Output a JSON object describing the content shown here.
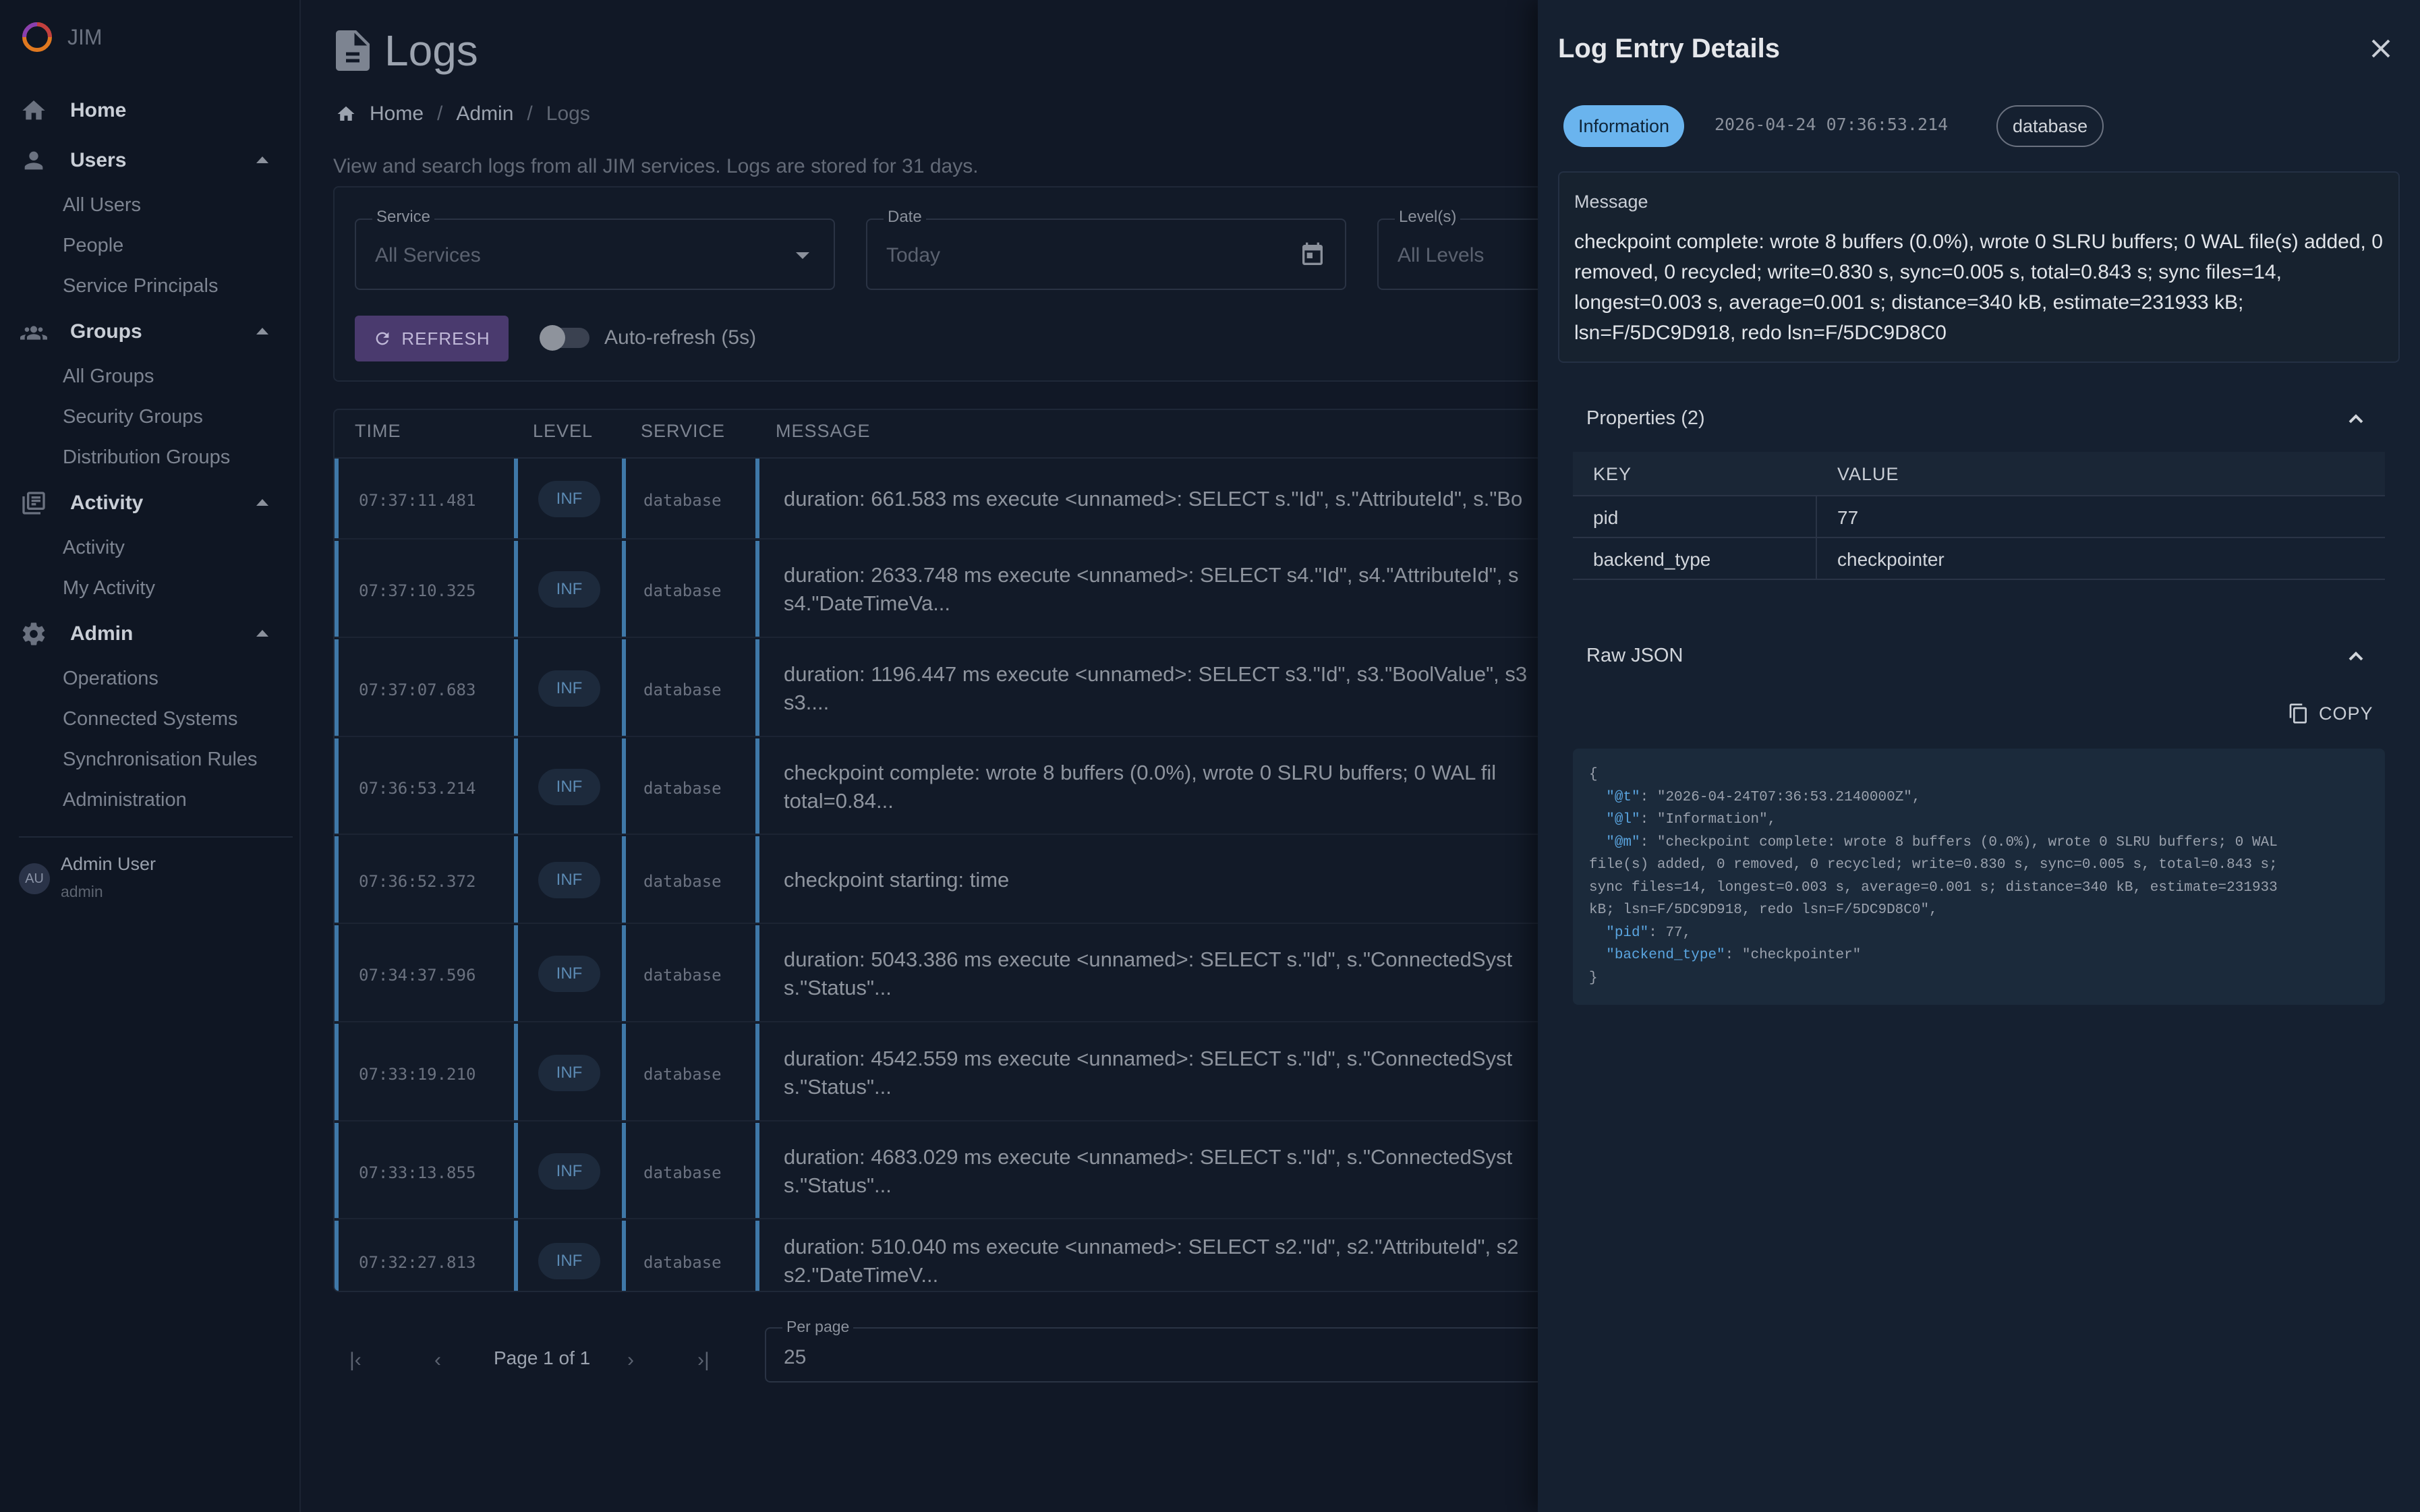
{
  "app": {
    "name": "JIM"
  },
  "sidebar": {
    "home": "Home",
    "groups": [
      {
        "label": "Users",
        "items": [
          "All Users",
          "People",
          "Service Principals"
        ]
      },
      {
        "label": "Groups",
        "items": [
          "All Groups",
          "Security Groups",
          "Distribution Groups"
        ]
      },
      {
        "label": "Activity",
        "items": [
          "Activity",
          "My Activity"
        ]
      },
      {
        "label": "Admin",
        "items": [
          "Operations",
          "Connected Systems",
          "Synchronisation Rules",
          "Administration"
        ]
      }
    ],
    "user": {
      "initials": "AU",
      "name": "Admin User",
      "role": "admin"
    }
  },
  "page": {
    "title": "Logs",
    "breadcrumb": [
      "Home",
      "Admin",
      "Logs"
    ],
    "subtitle": "View and search logs from all JIM services. Logs are stored for 31 days."
  },
  "filters": {
    "service": {
      "label": "Service",
      "value": "All Services"
    },
    "date": {
      "label": "Date",
      "value": "Today"
    },
    "levels": {
      "label": "Level(s)",
      "value": "All Levels"
    },
    "refresh_label": "REFRESH",
    "autorefresh_label": "Auto-refresh (5s)"
  },
  "table": {
    "headers": [
      "TIME",
      "LEVEL",
      "SERVICE",
      "MESSAGE"
    ],
    "rows": [
      {
        "time": "07:37:11.481",
        "level": "INF",
        "service": "database",
        "message": "duration: 661.583 ms execute <unnamed>: SELECT s.\"Id\", s.\"AttributeId\", s.\"Bo"
      },
      {
        "time": "07:37:10.325",
        "level": "INF",
        "service": "database",
        "message": "duration: 2633.748 ms execute <unnamed>: SELECT s4.\"Id\", s4.\"AttributeId\", s\ns4.\"DateTimeVa..."
      },
      {
        "time": "07:37:07.683",
        "level": "INF",
        "service": "database",
        "message": "duration: 1196.447 ms execute <unnamed>: SELECT s3.\"Id\", s3.\"BoolValue\", s3\ns3...."
      },
      {
        "time": "07:36:53.214",
        "level": "INF",
        "service": "database",
        "message": "checkpoint complete: wrote 8 buffers (0.0%), wrote 0 SLRU buffers; 0 WAL fil\ntotal=0.84..."
      },
      {
        "time": "07:36:52.372",
        "level": "INF",
        "service": "database",
        "message": "checkpoint starting: time"
      },
      {
        "time": "07:34:37.596",
        "level": "INF",
        "service": "database",
        "message": "duration: 5043.386 ms execute <unnamed>: SELECT s.\"Id\", s.\"ConnectedSyst\ns.\"Status\"..."
      },
      {
        "time": "07:33:19.210",
        "level": "INF",
        "service": "database",
        "message": "duration: 4542.559 ms execute <unnamed>: SELECT s.\"Id\", s.\"ConnectedSyst\ns.\"Status\"..."
      },
      {
        "time": "07:33:13.855",
        "level": "INF",
        "service": "database",
        "message": "duration: 4683.029 ms execute <unnamed>: SELECT s.\"Id\", s.\"ConnectedSyst\ns.\"Status\"..."
      },
      {
        "time": "07:32:27.813",
        "level": "INF",
        "service": "database",
        "message": "duration: 510.040 ms execute <unnamed>: SELECT s2.\"Id\", s2.\"AttributeId\", s2\ns2.\"DateTimeV..."
      }
    ]
  },
  "pager": {
    "page_text": "Page 1 of 1",
    "per_page_label": "Per page",
    "per_page_value": "25"
  },
  "drawer": {
    "title": "Log Entry Details",
    "level": "Information",
    "timestamp": "2026-04-24 07:36:53.214",
    "service": "database",
    "message_label": "Message",
    "message": "checkpoint complete: wrote 8 buffers (0.0%), wrote 0 SLRU buffers; 0 WAL file(s) added, 0 removed, 0 recycled; write=0.830 s, sync=0.005 s, total=0.843 s; sync files=14, longest=0.003 s, average=0.001 s; distance=340 kB, estimate=231933 kB; lsn=F/5DC9D918, redo lsn=F/5DC9D8C0",
    "properties_label": "Properties (2)",
    "properties_headers": [
      "KEY",
      "VALUE"
    ],
    "properties": [
      {
        "key": "pid",
        "value": "77"
      },
      {
        "key": "backend_type",
        "value": "checkpointer"
      }
    ],
    "raw_json_label": "Raw JSON",
    "copy_label": "COPY",
    "raw_json": {
      "open": "{",
      "t_key": "\"@t\"",
      "t_val": ": \"2026-04-24T07:36:53.2140000Z\",",
      "l_key": "\"@l\"",
      "l_val": ": \"Information\",",
      "m_key": "\"@m\"",
      "m_val1": ": \"checkpoint complete: wrote 8 buffers (0.0%), wrote 0 SLRU buffers; 0 WAL",
      "m_val2": "file(s) added, 0 removed, 0 recycled; write=0.830 s, sync=0.005 s, total=0.843 s;",
      "m_val3": "sync files=14, longest=0.003 s, average=0.001 s; distance=340 kB, estimate=231933",
      "m_val4": "kB; lsn=F/5DC9D918, redo lsn=F/5DC9D8C0\",",
      "pid_key": "\"pid\"",
      "pid_val": ": 77,",
      "bt_key": "\"backend_type\"",
      "bt_val": ": \"checkpointer\"",
      "close": "}"
    }
  }
}
